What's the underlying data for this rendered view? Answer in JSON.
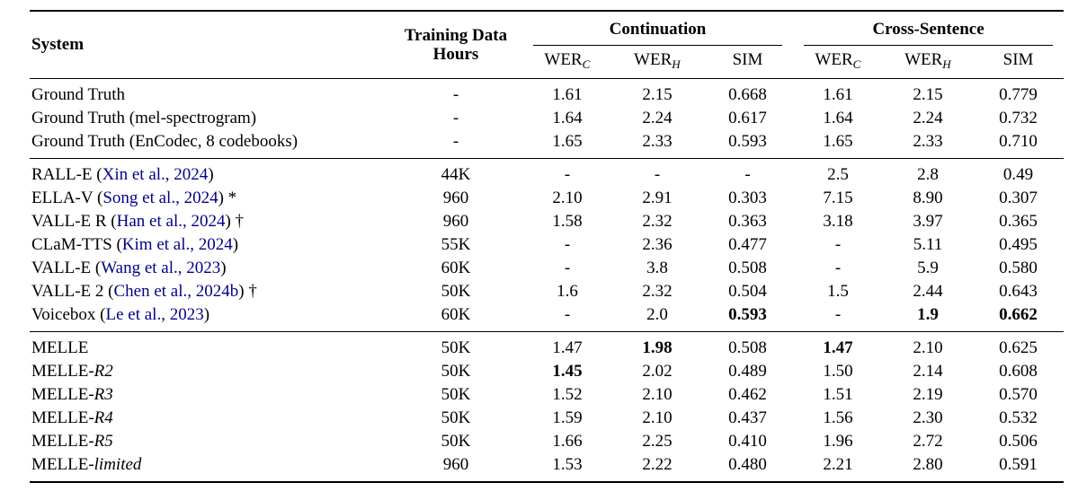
{
  "colors": {
    "text": "#000000",
    "citation": "#00008b",
    "rule": "#000000",
    "background": "#ffffff"
  },
  "header": {
    "system": "System",
    "hours": "Training Data Hours",
    "groups": [
      {
        "label": "Continuation"
      },
      {
        "label": "Cross-Sentence"
      }
    ],
    "metric_cols": [
      {
        "base": "WER",
        "sub": "C"
      },
      {
        "base": "WER",
        "sub": "H"
      },
      {
        "base": "SIM",
        "sub": ""
      }
    ]
  },
  "sections": [
    {
      "name": "ground-truth",
      "rows": [
        {
          "system": [
            {
              "t": "Ground Truth"
            }
          ],
          "hours": "-",
          "values": [
            "1.61",
            "2.15",
            "0.668",
            "1.61",
            "2.15",
            "0.779"
          ],
          "bold": []
        },
        {
          "system": [
            {
              "t": "Ground Truth (mel-spectrogram)"
            }
          ],
          "hours": "-",
          "values": [
            "1.64",
            "2.24",
            "0.617",
            "1.64",
            "2.24",
            "0.732"
          ],
          "bold": []
        },
        {
          "system": [
            {
              "t": "Ground Truth (EnCodec, 8 codebooks)"
            }
          ],
          "hours": "-",
          "values": [
            "1.65",
            "2.33",
            "0.593",
            "1.65",
            "2.33",
            "0.710"
          ],
          "bold": []
        }
      ]
    },
    {
      "name": "baselines",
      "rows": [
        {
          "system": [
            {
              "t": "RALL-E ("
            },
            {
              "t": "Xin et al., 2024",
              "c": true
            },
            {
              "t": ")"
            }
          ],
          "hours": "44K",
          "values": [
            "-",
            "-",
            "-",
            "2.5",
            "2.8",
            "0.49"
          ],
          "bold": []
        },
        {
          "system": [
            {
              "t": "ELLA-V ("
            },
            {
              "t": "Song et al., 2024",
              "c": true
            },
            {
              "t": ") *"
            }
          ],
          "hours": "960",
          "values": [
            "2.10",
            "2.91",
            "0.303",
            "7.15",
            "8.90",
            "0.307"
          ],
          "bold": []
        },
        {
          "system": [
            {
              "t": "VALL-E R ("
            },
            {
              "t": "Han et al., 2024",
              "c": true
            },
            {
              "t": ") †"
            }
          ],
          "hours": "960",
          "values": [
            "1.58",
            "2.32",
            "0.363",
            "3.18",
            "3.97",
            "0.365"
          ],
          "bold": []
        },
        {
          "system": [
            {
              "t": "CLaM-TTS ("
            },
            {
              "t": "Kim et al., 2024",
              "c": true
            },
            {
              "t": ")"
            }
          ],
          "hours": "55K",
          "values": [
            "-",
            "2.36",
            "0.477",
            "-",
            "5.11",
            "0.495"
          ],
          "bold": []
        },
        {
          "system": [
            {
              "t": "VALL-E ("
            },
            {
              "t": "Wang et al., 2023",
              "c": true
            },
            {
              "t": ")"
            }
          ],
          "hours": "60K",
          "values": [
            "-",
            "3.8",
            "0.508",
            "-",
            "5.9",
            "0.580"
          ],
          "bold": []
        },
        {
          "system": [
            {
              "t": "VALL-E 2 ("
            },
            {
              "t": "Chen et al., 2024b",
              "c": true
            },
            {
              "t": ") †"
            }
          ],
          "hours": "50K",
          "values": [
            "1.6",
            "2.32",
            "0.504",
            "1.5",
            "2.44",
            "0.643"
          ],
          "bold": []
        },
        {
          "system": [
            {
              "t": "Voicebox ("
            },
            {
              "t": "Le et al., 2023",
              "c": true
            },
            {
              "t": ")"
            }
          ],
          "hours": "60K",
          "values": [
            "-",
            "2.0",
            "0.593",
            "-",
            "1.9",
            "0.662"
          ],
          "bold": [
            2,
            4,
            5
          ]
        }
      ]
    },
    {
      "name": "melle",
      "rows": [
        {
          "system": [
            {
              "t": "MELLE"
            }
          ],
          "hours": "50K",
          "values": [
            "1.47",
            "1.98",
            "0.508",
            "1.47",
            "2.10",
            "0.625"
          ],
          "bold": [
            1,
            3
          ]
        },
        {
          "system": [
            {
              "t": "MELLE-"
            },
            {
              "t": "R2",
              "i": true
            }
          ],
          "hours": "50K",
          "values": [
            "1.45",
            "2.02",
            "0.489",
            "1.50",
            "2.14",
            "0.608"
          ],
          "bold": [
            0
          ]
        },
        {
          "system": [
            {
              "t": "MELLE-"
            },
            {
              "t": "R3",
              "i": true
            }
          ],
          "hours": "50K",
          "values": [
            "1.52",
            "2.10",
            "0.462",
            "1.51",
            "2.19",
            "0.570"
          ],
          "bold": []
        },
        {
          "system": [
            {
              "t": "MELLE-"
            },
            {
              "t": "R4",
              "i": true
            }
          ],
          "hours": "50K",
          "values": [
            "1.59",
            "2.10",
            "0.437",
            "1.56",
            "2.30",
            "0.532"
          ],
          "bold": []
        },
        {
          "system": [
            {
              "t": "MELLE-"
            },
            {
              "t": "R5",
              "i": true
            }
          ],
          "hours": "50K",
          "values": [
            "1.66",
            "2.25",
            "0.410",
            "1.96",
            "2.72",
            "0.506"
          ],
          "bold": []
        },
        {
          "system": [
            {
              "t": "MELLE-"
            },
            {
              "t": "limited",
              "i": true
            }
          ],
          "hours": "960",
          "values": [
            "1.53",
            "2.22",
            "0.480",
            "2.21",
            "2.80",
            "0.591"
          ],
          "bold": []
        }
      ]
    }
  ]
}
